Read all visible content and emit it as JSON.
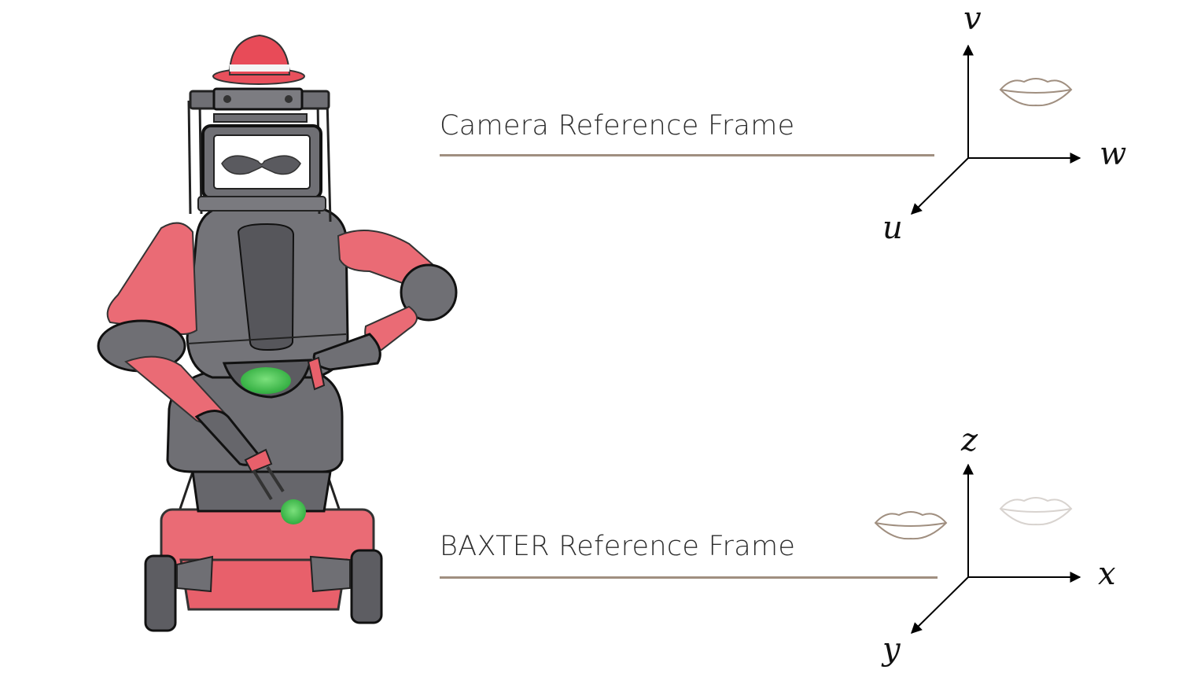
{
  "camera_frame": {
    "label": "Camera Reference Frame",
    "axes": {
      "up": "v",
      "right": "w",
      "diag": "u"
    }
  },
  "baxter_frame": {
    "label": "BAXTER Reference Frame",
    "axes": {
      "up": "z",
      "right": "x",
      "diag": "y"
    }
  },
  "colors": {
    "rule": "#a08f80",
    "lips": "#a08f80",
    "lips_faded": "#d8d3cf",
    "robot_red": "#e8606b",
    "robot_gray": "#6f6f74",
    "object_green": "#3ec24a"
  }
}
